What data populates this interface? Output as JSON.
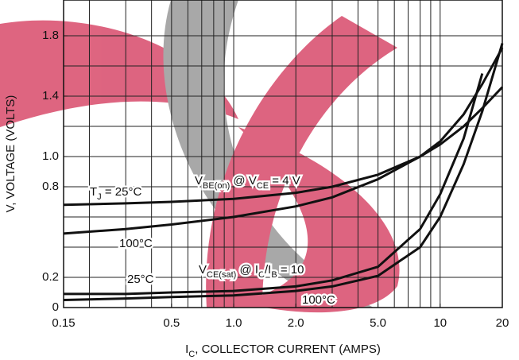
{
  "chart_data": {
    "type": "line",
    "xlabel": [
      "I",
      "C",
      ", COLLECTOR CURRENT (AMPS)"
    ],
    "ylabel": "V, VOLTAGE (VOLTS)",
    "xscale": "log",
    "xlim": [
      0.15,
      20
    ],
    "ylim": [
      0,
      2.0
    ],
    "xticks": [
      0.15,
      0.5,
      {
        "value": 1.0,
        "label": "1.0"
      },
      {
        "value": 2.0,
        "label": "2.0"
      },
      {
        "value": 5.0,
        "label": "5.0"
      },
      10,
      20
    ],
    "x_grid": [
      0.2,
      0.3,
      0.4,
      0.5,
      0.6,
      0.7,
      0.8,
      0.9,
      1,
      2,
      3,
      4,
      5,
      6,
      7,
      8,
      9,
      10,
      20
    ],
    "yticks": [
      0,
      0.2,
      0.8,
      {
        "value": 1.0,
        "label": "1.0"
      },
      1.4,
      1.8
    ],
    "y_grid": [
      0.2,
      0.4,
      0.6,
      0.8,
      1.0,
      1.2,
      1.4,
      1.6,
      1.8
    ],
    "grid": true,
    "x": [
      0.15,
      0.3,
      0.5,
      1,
      2,
      3,
      5,
      8,
      10,
      13,
      16,
      20
    ],
    "series": [
      {
        "color": "#111",
        "values": [
          0.68,
          0.69,
          0.7,
          0.72,
          0.76,
          0.8,
          0.88,
          1.0,
          1.08,
          1.2,
          1.32,
          1.46
        ]
      },
      {
        "color": "#111",
        "values": [
          0.49,
          0.52,
          0.55,
          0.6,
          0.67,
          0.73,
          0.85,
          1.0,
          1.1,
          1.28,
          1.48,
          1.72
        ]
      },
      {
        "color": "#111",
        "values": [
          0.09,
          0.09,
          0.1,
          0.11,
          0.14,
          0.18,
          0.27,
          0.52,
          0.75,
          1.12,
          1.55,
          null
        ]
      },
      {
        "color": "#111",
        "values": [
          0.05,
          0.06,
          0.07,
          0.08,
          0.11,
          0.14,
          0.21,
          0.4,
          0.6,
          0.95,
          1.3,
          1.75
        ]
      }
    ],
    "annotations": [
      {
        "parts": [
          "T",
          "J",
          " = 25°C"
        ]
      },
      {
        "parts": [
          "V",
          "BE(on)",
          " @ V",
          "CE",
          " = 4 V"
        ]
      },
      {
        "parts": [
          "100°C"
        ]
      },
      {
        "parts": [
          "25°C"
        ]
      },
      {
        "parts": [
          "V",
          "CE(sat)",
          " @ I",
          "C",
          "/I",
          "B",
          " = 10"
        ]
      },
      {
        "parts": [
          "100°C"
        ]
      }
    ]
  }
}
